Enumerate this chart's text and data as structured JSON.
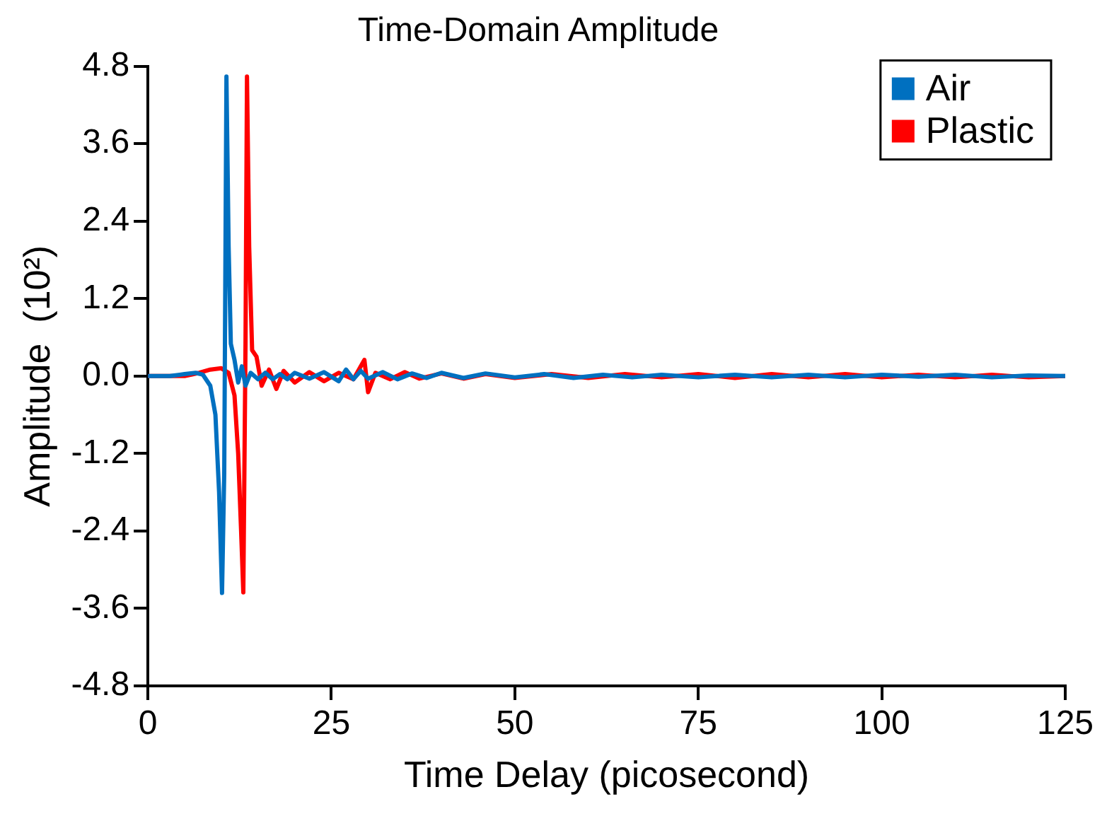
{
  "chart_data": {
    "type": "line",
    "title": "Time-Domain Amplitude",
    "xlabel": "Time Delay (picosecond)",
    "ylabel": "Amplitude  (10²)",
    "xlim": [
      0,
      125
    ],
    "xticks": [
      0,
      25,
      50,
      75,
      100,
      125
    ],
    "ylim": [
      -4.8,
      4.8
    ],
    "yticks": [
      -4.8,
      -3.6,
      -2.4,
      -1.2,
      {
        "value": 0,
        "label": "0.0"
      },
      1.2,
      2.4,
      3.6,
      4.8
    ],
    "grid": false,
    "legend": "top right",
    "marker": "none",
    "line_style": "solid",
    "series": [
      {
        "name": "Air",
        "color": "#0070c0",
        "x": [
          0,
          3,
          5,
          6.5,
          7.5,
          8.5,
          9.2,
          9.7,
          10.1,
          10.4,
          10.7,
          11.0,
          11.3,
          11.8,
          12.3,
          12.8,
          13.3,
          14,
          15,
          16,
          17,
          18,
          19,
          20,
          22,
          24,
          26,
          27,
          28,
          29,
          30,
          32,
          34,
          36,
          38,
          40,
          43,
          46,
          50,
          54,
          58,
          62,
          66,
          70,
          75,
          80,
          85,
          90,
          95,
          100,
          105,
          110,
          115,
          120,
          125
        ],
        "values": [
          0,
          0,
          0.03,
          0.05,
          0.02,
          -0.15,
          -0.6,
          -1.8,
          -3.36,
          -1.5,
          4.64,
          2.0,
          0.5,
          0.25,
          -0.1,
          0.15,
          -0.15,
          0.05,
          -0.05,
          0.05,
          -0.05,
          0.03,
          -0.05,
          0.05,
          -0.04,
          0.06,
          -0.08,
          0.1,
          -0.05,
          0.08,
          -0.04,
          0.06,
          -0.05,
          0.04,
          -0.03,
          0.05,
          -0.03,
          0.04,
          -0.02,
          0.03,
          -0.03,
          0.02,
          -0.02,
          0.02,
          -0.02,
          0.02,
          -0.02,
          0.02,
          -0.02,
          0.02,
          -0.01,
          0.02,
          -0.02,
          0.01,
          0
        ]
      },
      {
        "name": "Plastic",
        "color": "#ff0000",
        "x": [
          0,
          5,
          7,
          8.5,
          10,
          11,
          11.8,
          12.3,
          12.7,
          13.0,
          13.3,
          13.5,
          13.8,
          14.2,
          14.8,
          15.5,
          16.5,
          17.5,
          18.5,
          20,
          22,
          24,
          26,
          28,
          29.5,
          30,
          31,
          33,
          35,
          37,
          40,
          43,
          46,
          50,
          55,
          60,
          65,
          70,
          75,
          80,
          85,
          90,
          95,
          100,
          105,
          110,
          115,
          120,
          125
        ],
        "values": [
          0,
          0,
          0.05,
          0.1,
          0.12,
          0.05,
          -0.3,
          -1.2,
          -2.4,
          -3.35,
          0.5,
          4.64,
          2.0,
          0.4,
          0.3,
          -0.15,
          0.1,
          -0.2,
          0.08,
          -0.1,
          0.06,
          -0.08,
          0.05,
          -0.05,
          0.25,
          -0.25,
          0.05,
          -0.05,
          0.06,
          -0.04,
          0.04,
          -0.04,
          0.03,
          -0.03,
          0.03,
          -0.03,
          0.03,
          -0.02,
          0.03,
          -0.03,
          0.03,
          -0.02,
          0.03,
          -0.02,
          0.02,
          -0.02,
          0.02,
          -0.02,
          0
        ]
      }
    ]
  }
}
